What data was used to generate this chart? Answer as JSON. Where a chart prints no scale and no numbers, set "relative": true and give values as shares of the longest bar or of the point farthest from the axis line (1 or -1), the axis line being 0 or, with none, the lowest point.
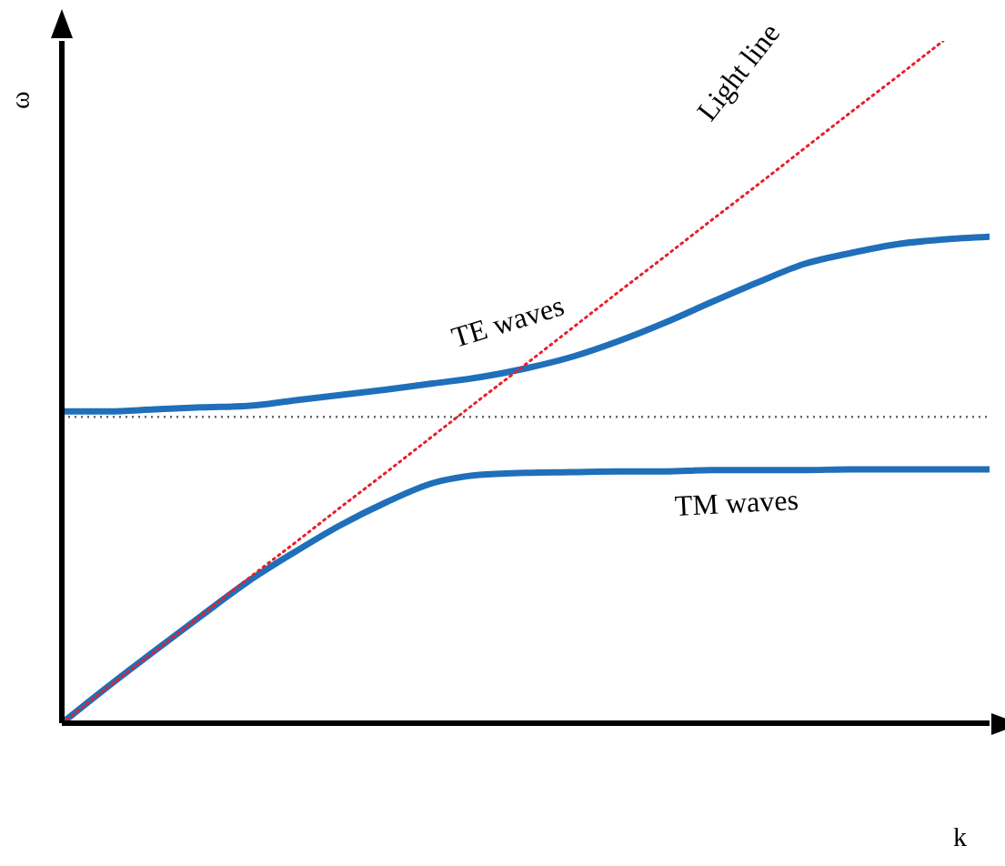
{
  "chart_data": {
    "type": "line",
    "relative": true,
    "xlabel": "k",
    "ylabel": "ω",
    "marker": "none",
    "categories": [
      null,
      null,
      null,
      null,
      null,
      null,
      null,
      null,
      null,
      null,
      null,
      null,
      null,
      null,
      null,
      null,
      null,
      null,
      null,
      null,
      null
    ],
    "series": [
      {
        "name": "TE waves",
        "color": "#1f6fba",
        "line_style": "solid",
        "values": [
          0.457,
          0.457,
          0.46,
          0.463,
          0.465,
          0.473,
          0.481,
          0.489,
          0.498,
          0.507,
          0.52,
          0.537,
          0.56,
          0.587,
          0.617,
          0.646,
          0.673,
          0.689,
          0.702,
          0.709,
          0.713
        ]
      },
      {
        "name": "TM waves",
        "color": "#1f6fba",
        "line_style": "solid",
        "values": [
          0,
          0.054,
          0.106,
          0.157,
          0.207,
          0.25,
          0.29,
          0.324,
          0.352,
          0.364,
          0.367,
          0.368,
          0.369,
          0.369,
          0.371,
          0.371,
          0.371,
          0.372,
          0.372,
          0.372,
          0.372
        ]
      },
      {
        "name": "Light line",
        "color": "#e8202a",
        "line_style": "dotted",
        "values": [
          0,
          0.053,
          0.105,
          0.158,
          0.211,
          0.263,
          0.316,
          0.368,
          0.421,
          0.474,
          0.526,
          0.579,
          0.632,
          0.684,
          0.737,
          0.789,
          0.842,
          0.895,
          0.947,
          1,
          null
        ]
      }
    ],
    "ref_lines": [
      {
        "axis": "y",
        "value": 0.449,
        "color": "#666666",
        "line_style": "dotted"
      }
    ]
  }
}
